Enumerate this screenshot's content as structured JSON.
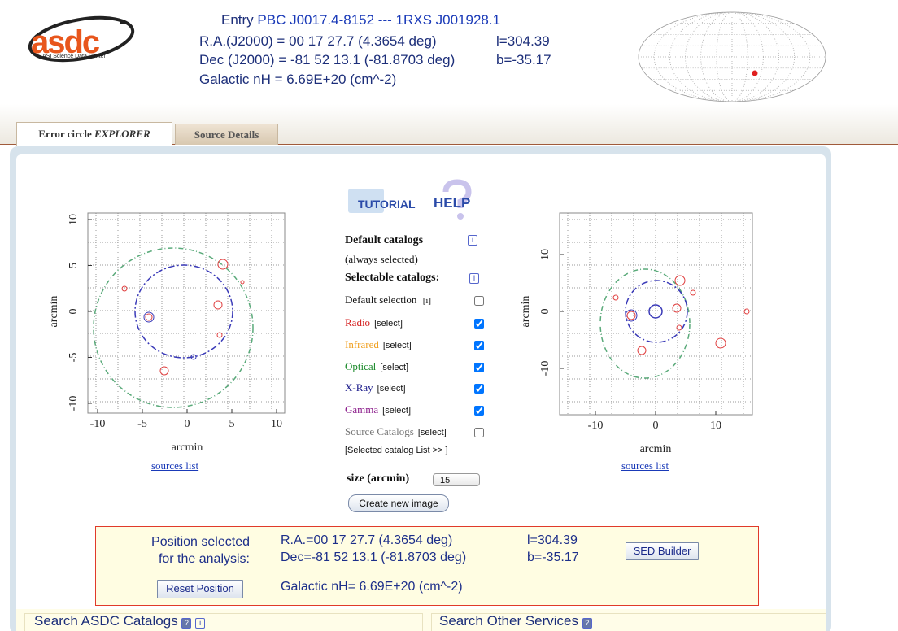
{
  "header": {
    "logo": "asdc",
    "logo_subtitle": "ASI Science Data Center",
    "entry_label": "Entry",
    "entry_name": "PBC J0017.4-8152 --- 1RXS J001928.1",
    "ra": "R.A.(J2000) = 00 17 27.7 (4.3654 deg)",
    "l": "l=304.39",
    "dec": "Dec (J2000) = -81 52 13.1 (-81.8703 deg)",
    "b": "b=-35.17",
    "nh": "Galactic nH = 6.69E+20 (cm^-2)"
  },
  "tabs": [
    {
      "label": "Error circle",
      "label_emphasis": "EXPLORER",
      "active": true
    },
    {
      "label": "Source Details",
      "active": false
    }
  ],
  "left_plot": {
    "yticks": [
      10,
      5,
      0,
      -5,
      -10
    ],
    "xticks": [
      -10,
      -5,
      0,
      5,
      10
    ],
    "xlabel": "arcmin",
    "ylabel": "arcmin",
    "link": "sources list"
  },
  "right_plot": {
    "yticks": [
      10,
      0,
      -10
    ],
    "xticks": [
      -10,
      0,
      10
    ],
    "xlabel": "arcmin",
    "ylabel": "arcmin",
    "link": "sources list"
  },
  "catalog_panel": {
    "tutorial": "TUTORIAL",
    "help": "HELP",
    "default_catalogs": "Default catalogs",
    "info": "i",
    "always_selected": "(always selected)",
    "selectable_catalogs": "Selectable catalogs:",
    "default_selection": "Default selection",
    "default_selection_info": "[i]",
    "default_selection_checked": false,
    "catalogs": [
      {
        "name": "Radio",
        "select": "[select]",
        "color": "#d42020",
        "checked": true
      },
      {
        "name": "Infrared",
        "select": "[select]",
        "color": "#f0a020",
        "checked": true
      },
      {
        "name": "Optical",
        "select": "[select]",
        "color": "#1a8a2a",
        "checked": true
      },
      {
        "name": "X-Ray",
        "select": "[select]",
        "color": "#1a1a8a",
        "checked": true
      },
      {
        "name": "Gamma",
        "select": "[select]",
        "color": "#8a1a8a",
        "checked": true
      },
      {
        "name": "Source Catalogs",
        "select": "[select]",
        "color": "#777777",
        "checked": false
      }
    ],
    "selected_list": "[Selected catalog List >> ]",
    "size_label": "size (arcmin)",
    "size_value": "15",
    "create_button": "Create new image"
  },
  "position_box": {
    "label_line1": "Position selected",
    "label_line2": "for the analysis:",
    "ra": "R.A.=00 17 27.7 (4.3654 deg)",
    "l": "l=304.39",
    "dec": "Dec=-81 52 13.1 (-81.8703 deg)",
    "b": "b=-35.17",
    "nh": "Galactic nH= 6.69E+20 (cm^-2)",
    "sed_button": "SED Builder",
    "reset_button": "Reset Position"
  },
  "search": {
    "asdc": "Search ASDC Catalogs",
    "other": "Search Other Services",
    "help_icon": "?",
    "info_icon": "i"
  }
}
